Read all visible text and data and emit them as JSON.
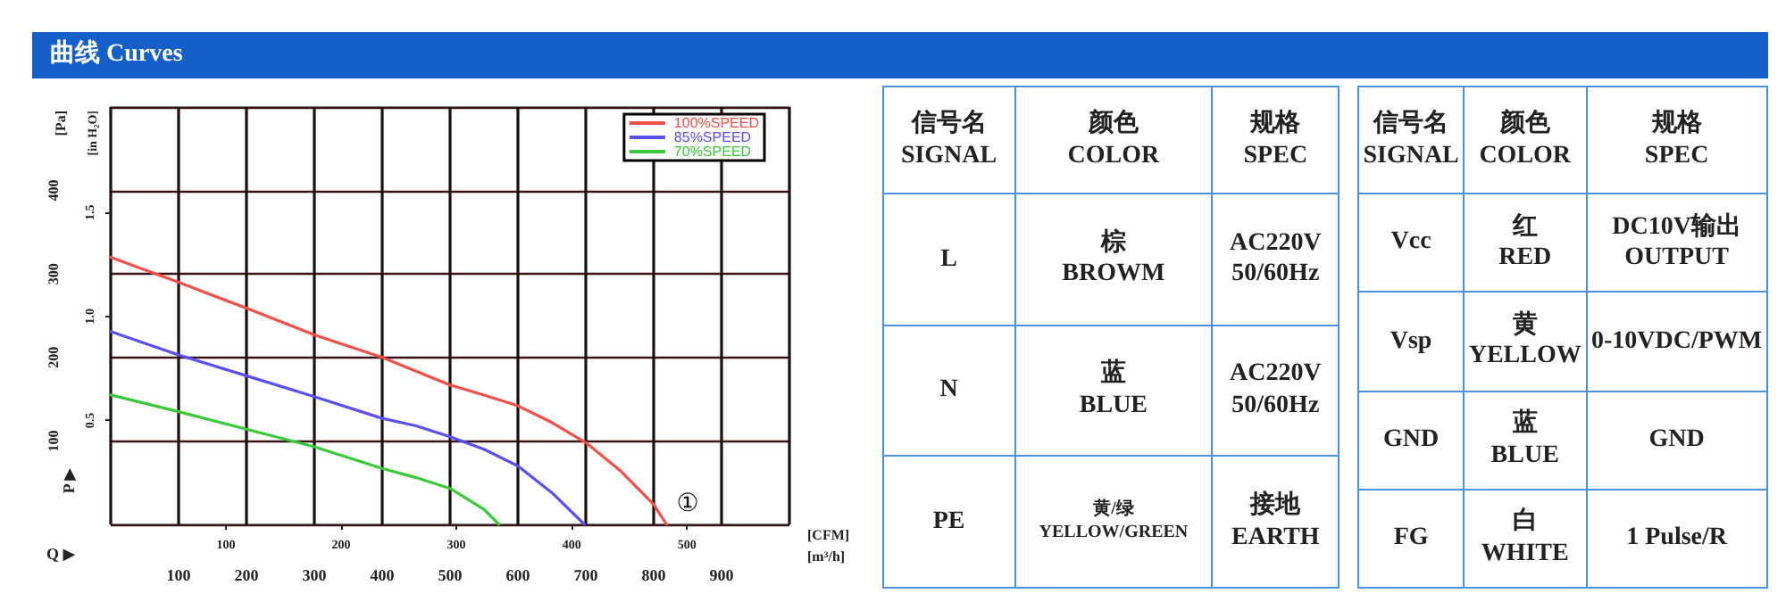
{
  "chart_data": [
    {
      "type": "line",
      "title": "曲线 Curves",
      "xlabel": "[m³/h]",
      "x2label": "[CFM]",
      "ylabel": "[Pa]",
      "y2label": "[in H₂O]",
      "xlim": [
        0,
        1000
      ],
      "xticks": [
        100,
        200,
        300,
        400,
        500,
        600,
        700,
        800,
        900
      ],
      "x2lim": [
        0,
        589
      ],
      "x2ticks": [
        100,
        200,
        300,
        400,
        500
      ],
      "ylim": [
        0,
        500
      ],
      "yticks": [
        100,
        200,
        300,
        400
      ],
      "y2lim": [
        0,
        2.007
      ],
      "y2ticks": [
        {
          "value": 0.5,
          "label": "0.5"
        },
        {
          "value": 1.0,
          "label": "1.0"
        },
        {
          "value": 1.5,
          "label": "1.5"
        }
      ],
      "grid": true,
      "legend": "top right",
      "marker": "none",
      "series": [
        {
          "name": "100%SPEED",
          "color": "#f0504a",
          "x": [
            0,
            100,
            200,
            300,
            400,
            500,
            550,
            600,
            650,
            700,
            750,
            800,
            819
          ],
          "values": [
            320,
            290,
            259,
            227,
            200,
            167,
            155,
            142,
            122,
            98,
            65,
            24,
            0
          ]
        },
        {
          "name": "85%SPEED",
          "color": "#5a4ff0",
          "x": [
            0,
            100,
            200,
            300,
            400,
            450,
            500,
            550,
            600,
            650,
            698
          ],
          "values": [
            231,
            203,
            178,
            153,
            127,
            118,
            105,
            90,
            70,
            38,
            0
          ]
        },
        {
          "name": "70%SPEED",
          "color": "#3cc83c",
          "x": [
            0,
            100,
            200,
            300,
            400,
            450,
            500,
            550,
            572
          ],
          "values": [
            155,
            135,
            114,
            93,
            67,
            56,
            43,
            18,
            0
          ]
        }
      ],
      "annotations": [
        "P ▶",
        "Q ▶",
        "①"
      ]
    },
    {
      "type": "other",
      "annotations": [
        "信号名\nSIGNAL",
        "颜色\nCOLOR",
        "规格\nSPEC",
        "L",
        "棕\nBROWM",
        "AC220V\n50/60Hz",
        "N",
        "蓝\nBLUE",
        "AC220V\n50/60Hz",
        "PE",
        "黄/绿\nYELLOW/GREEN",
        "接地\nEARTH"
      ]
    },
    {
      "type": "other",
      "annotations": [
        "信号名\nSIGNAL",
        "颜色\nCOLOR",
        "规格\nSPEC",
        "Vcc",
        "红\nRED",
        "DC10V输出\nOUTPUT",
        "Vsp",
        "黄\nYELLOW",
        "0-10VDC/PWM",
        "GND",
        "蓝\nBLUE",
        "GND",
        "FG",
        "白\nWHITE",
        "1 Pulse/R"
      ]
    }
  ]
}
